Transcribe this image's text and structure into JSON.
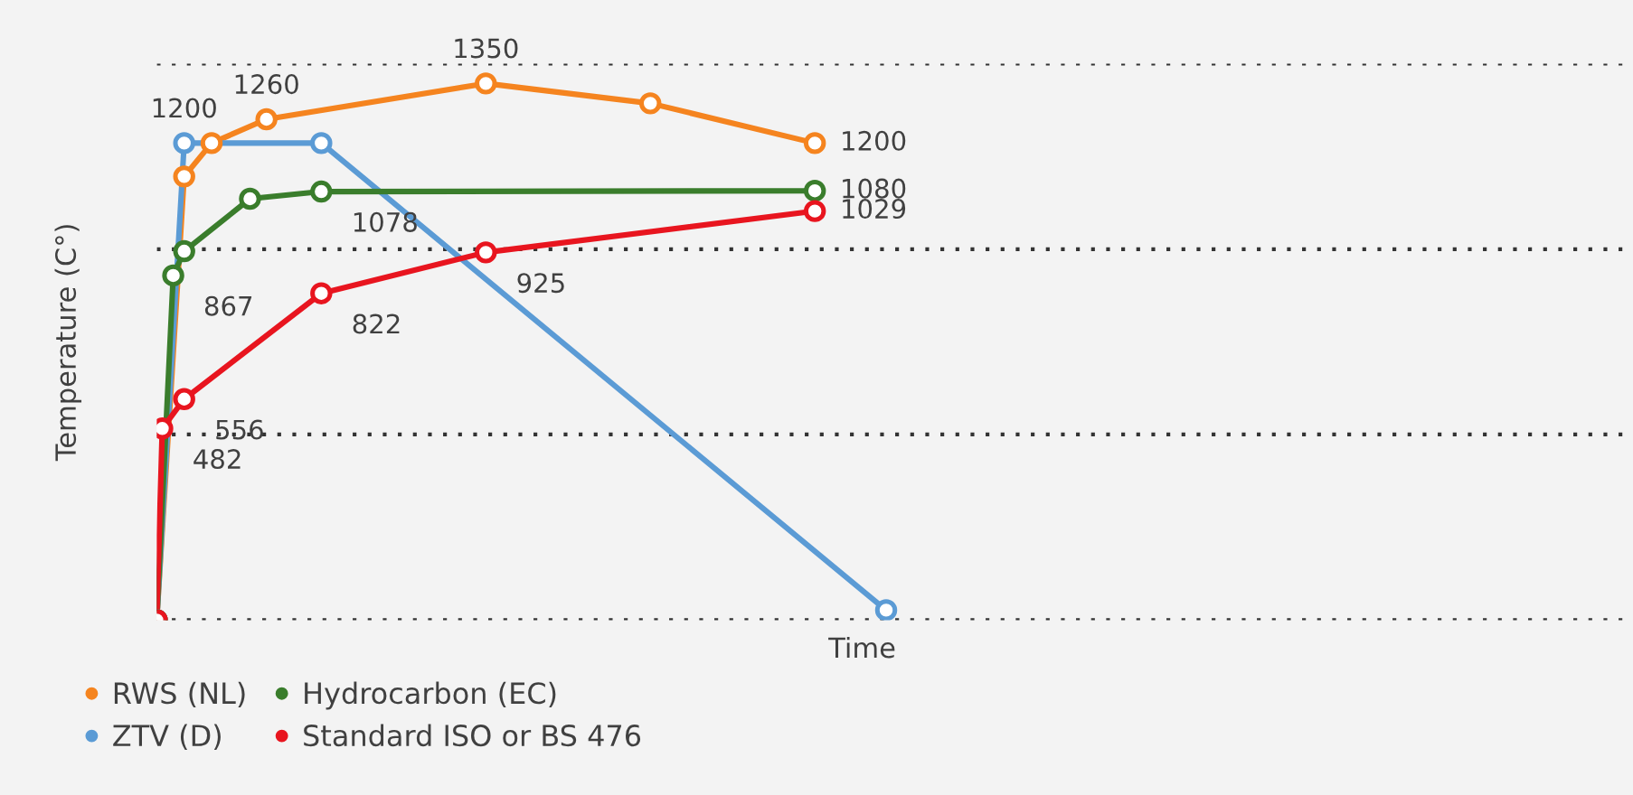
{
  "chart_data": {
    "type": "line",
    "xlabel": "Time",
    "ylabel": "Temperature (C°)",
    "ylim": [
      0,
      1400
    ],
    "yticks": [
      {
        "value": 0,
        "label": null
      },
      {
        "value": 467,
        "label": null
      },
      {
        "value": 933,
        "label": null
      },
      {
        "value": 1400,
        "label": null
      }
    ],
    "tick_labels": false,
    "grid": "y",
    "legend": "bottom left",
    "marker": "circle",
    "line_style": "solid",
    "categories": [
      null,
      null,
      null,
      null,
      null,
      null,
      null,
      null,
      null,
      null,
      null,
      null,
      null,
      null,
      null,
      null,
      null,
      null,
      null,
      null,
      null,
      null,
      null,
      null,
      null,
      null,
      null,
      null,
      null,
      null,
      null,
      null,
      null,
      null,
      null,
      null,
      null,
      null,
      null,
      null,
      null,
      null,
      null,
      null,
      null,
      null,
      null,
      null,
      null,
      null,
      null,
      null,
      null,
      null,
      null,
      null,
      null,
      null,
      null,
      null,
      null,
      null,
      null,
      null,
      null,
      null,
      null,
      null,
      null,
      null,
      null,
      null,
      null,
      null,
      null,
      null,
      null,
      null,
      null,
      null,
      null,
      null,
      null,
      null,
      null,
      null,
      null,
      null,
      null,
      null,
      null,
      null,
      null,
      null,
      null,
      null,
      null,
      null,
      null,
      null,
      null,
      null,
      null,
      null,
      null,
      null,
      null,
      null,
      null,
      null,
      null,
      null,
      null,
      null,
      null,
      null,
      null,
      null,
      null,
      null,
      null,
      null,
      null,
      null,
      null,
      null,
      null,
      null,
      null,
      null,
      null,
      null,
      null,
      null
    ],
    "series": [
      {
        "name": "RWS (NL)",
        "color": "#f5841f",
        "values": [
          0,
          null,
          null,
          null,
          null,
          1116,
          null,
          null,
          null,
          null,
          1200,
          null,
          null,
          null,
          null,
          null,
          null,
          null,
          null,
          null,
          1260,
          null,
          null,
          null,
          null,
          null,
          null,
          null,
          null,
          null,
          null,
          null,
          null,
          null,
          null,
          null,
          null,
          null,
          null,
          null,
          null,
          null,
          null,
          null,
          null,
          null,
          null,
          null,
          null,
          null,
          null,
          null,
          null,
          null,
          null,
          null,
          null,
          null,
          null,
          null,
          1350,
          null,
          null,
          null,
          null,
          null,
          null,
          null,
          null,
          null,
          null,
          null,
          null,
          null,
          null,
          null,
          null,
          null,
          null,
          null,
          null,
          null,
          null,
          null,
          null,
          null,
          null,
          null,
          null,
          null,
          1300,
          null,
          null,
          null,
          null,
          null,
          null,
          null,
          null,
          null,
          null,
          null,
          null,
          null,
          null,
          null,
          null,
          null,
          null,
          null,
          null,
          null,
          null,
          null,
          null,
          null,
          null,
          null,
          null,
          null,
          1200,
          null,
          null,
          null,
          null,
          null,
          null,
          null,
          null,
          null,
          null,
          null,
          null,
          null
        ],
        "value_labels": [
          null,
          null,
          null,
          null,
          null,
          null,
          null,
          null,
          null,
          null,
          null,
          null,
          null,
          null,
          null,
          null,
          null,
          null,
          null,
          null,
          "1260",
          null,
          null,
          null,
          null,
          null,
          null,
          null,
          null,
          null,
          null,
          null,
          null,
          null,
          null,
          null,
          null,
          null,
          null,
          null,
          null,
          null,
          null,
          null,
          null,
          null,
          null,
          null,
          null,
          null,
          null,
          null,
          null,
          null,
          null,
          null,
          null,
          null,
          null,
          null,
          "1350",
          null,
          null,
          null,
          null,
          null,
          null,
          null,
          null,
          null,
          null,
          null,
          null,
          null,
          null,
          null,
          null,
          null,
          null,
          null,
          null,
          null,
          null,
          null,
          null,
          null,
          null,
          null,
          null,
          null,
          null,
          null,
          null,
          null,
          null,
          null,
          null,
          null,
          null,
          null,
          null,
          null,
          null,
          null,
          null,
          null,
          null,
          null,
          null,
          null,
          null,
          null,
          null,
          null,
          null,
          null,
          null,
          null,
          null,
          null,
          "1200",
          null,
          null,
          null,
          null,
          null,
          null,
          null,
          null,
          null,
          null,
          null,
          null,
          null
        ]
      },
      {
        "name": "ZTV (D)",
        "color": "#5b9bd5",
        "values": [
          0,
          null,
          null,
          null,
          null,
          1200,
          null,
          null,
          null,
          null,
          null,
          null,
          null,
          null,
          null,
          null,
          null,
          null,
          null,
          null,
          null,
          null,
          null,
          null,
          null,
          null,
          null,
          null,
          null,
          null,
          1200,
          null,
          null,
          null,
          null,
          null,
          null,
          null,
          null,
          null,
          null,
          null,
          null,
          null,
          null,
          null,
          null,
          null,
          null,
          null,
          null,
          null,
          null,
          null,
          null,
          null,
          null,
          null,
          null,
          null,
          null,
          null,
          null,
          null,
          null,
          null,
          null,
          null,
          null,
          null,
          null,
          null,
          null,
          null,
          null,
          null,
          null,
          null,
          null,
          null,
          null,
          null,
          null,
          null,
          null,
          null,
          null,
          null,
          null,
          null,
          null,
          null,
          null,
          null,
          null,
          null,
          null,
          null,
          null,
          null,
          null,
          null,
          null,
          null,
          null,
          null,
          null,
          null,
          null,
          null,
          null,
          null,
          null,
          null,
          null,
          null,
          null,
          null,
          null,
          null,
          null,
          null,
          null,
          null,
          null,
          null,
          null,
          null,
          null,
          null,
          null,
          null,
          null,
          25
        ],
        "value_labels": [
          null,
          null,
          null,
          null,
          null,
          "1200",
          null,
          null,
          null,
          null,
          null,
          null,
          null,
          null,
          null,
          null,
          null,
          null,
          null,
          null,
          null,
          null,
          null,
          null,
          null,
          null,
          null,
          null,
          null,
          null,
          null,
          null,
          null,
          null,
          null,
          null,
          null,
          null,
          null,
          null,
          null,
          null,
          null,
          null,
          null,
          null,
          null,
          null,
          null,
          null,
          null,
          null,
          null,
          null,
          null,
          null,
          null,
          null,
          null,
          null,
          null,
          null,
          null,
          null,
          null,
          null,
          null,
          null,
          null,
          null,
          null,
          null,
          null,
          null,
          null,
          null,
          null,
          null,
          null,
          null,
          null,
          null,
          null,
          null,
          null,
          null,
          null,
          null,
          null,
          null,
          null,
          null,
          null,
          null,
          null,
          null,
          null,
          null,
          null,
          null,
          null,
          null,
          null,
          null,
          null,
          null,
          null,
          null,
          null,
          null,
          null,
          null,
          null,
          null,
          null,
          null,
          null,
          null,
          null,
          null,
          null,
          null,
          null,
          null,
          null,
          null,
          null,
          null,
          null,
          null,
          null,
          null,
          null,
          null
        ]
      },
      {
        "name": "Hydrocarbon (EC)",
        "color": "#3a7d2c",
        "values": [
          0,
          null,
          null,
          867,
          null,
          928,
          null,
          null,
          null,
          null,
          null,
          null,
          null,
          null,
          null,
          null,
          null,
          1060,
          null,
          null,
          null,
          null,
          null,
          null,
          null,
          null,
          null,
          null,
          null,
          null,
          1078,
          null,
          null,
          null,
          null,
          null,
          null,
          null,
          null,
          null,
          null,
          null,
          null,
          null,
          null,
          null,
          null,
          null,
          null,
          null,
          null,
          null,
          null,
          null,
          null,
          null,
          null,
          null,
          null,
          null,
          null,
          null,
          null,
          null,
          null,
          null,
          null,
          null,
          null,
          null,
          null,
          null,
          null,
          null,
          null,
          null,
          null,
          null,
          null,
          null,
          null,
          null,
          null,
          null,
          null,
          null,
          null,
          null,
          null,
          null,
          null,
          null,
          null,
          null,
          null,
          null,
          null,
          null,
          null,
          null,
          null,
          null,
          null,
          null,
          null,
          null,
          null,
          null,
          null,
          null,
          null,
          null,
          null,
          null,
          null,
          null,
          null,
          null,
          null,
          null,
          1080,
          null,
          null,
          null,
          null,
          null,
          null,
          null,
          null,
          null,
          null,
          null,
          null,
          null
        ],
        "value_labels": [
          null,
          null,
          null,
          "867",
          null,
          null,
          null,
          null,
          null,
          null,
          null,
          null,
          null,
          null,
          null,
          null,
          null,
          null,
          null,
          null,
          null,
          null,
          null,
          null,
          null,
          null,
          null,
          null,
          null,
          null,
          "1078",
          null,
          null,
          null,
          null,
          null,
          null,
          null,
          null,
          null,
          null,
          null,
          null,
          null,
          null,
          null,
          null,
          null,
          null,
          null,
          null,
          null,
          null,
          null,
          null,
          null,
          null,
          null,
          null,
          null,
          null,
          null,
          null,
          null,
          null,
          null,
          null,
          null,
          null,
          null,
          null,
          null,
          null,
          null,
          null,
          null,
          null,
          null,
          null,
          null,
          null,
          null,
          null,
          null,
          null,
          null,
          null,
          null,
          null,
          null,
          null,
          null,
          null,
          null,
          null,
          null,
          null,
          null,
          null,
          null,
          null,
          null,
          null,
          null,
          null,
          null,
          null,
          null,
          null,
          null,
          null,
          null,
          null,
          null,
          null,
          null,
          null,
          null,
          null,
          null,
          "1080",
          null,
          null,
          null,
          null,
          null,
          null,
          null,
          null,
          null,
          null,
          null,
          null,
          null
        ]
      },
      {
        "name": "Standard ISO or BS 476",
        "color": "#e8151f",
        "values": [
          0,
          482,
          null,
          null,
          null,
          556,
          null,
          null,
          null,
          null,
          null,
          null,
          null,
          null,
          null,
          null,
          null,
          null,
          null,
          null,
          null,
          null,
          null,
          null,
          null,
          null,
          null,
          null,
          null,
          null,
          822,
          null,
          null,
          null,
          null,
          null,
          null,
          null,
          null,
          null,
          null,
          null,
          null,
          null,
          null,
          null,
          null,
          null,
          null,
          null,
          null,
          null,
          null,
          null,
          null,
          null,
          null,
          null,
          null,
          null,
          925,
          null,
          null,
          null,
          null,
          null,
          null,
          null,
          null,
          null,
          null,
          null,
          null,
          null,
          null,
          null,
          null,
          null,
          null,
          null,
          null,
          null,
          null,
          null,
          null,
          null,
          null,
          null,
          null,
          null,
          null,
          null,
          null,
          null,
          null,
          null,
          null,
          null,
          null,
          null,
          null,
          null,
          null,
          null,
          null,
          null,
          null,
          null,
          null,
          null,
          null,
          null,
          null,
          null,
          null,
          null,
          null,
          null,
          null,
          null,
          1029,
          null,
          null,
          null,
          null,
          null,
          null,
          null,
          null,
          null,
          null,
          null,
          null,
          null
        ],
        "value_labels": [
          null,
          "482",
          null,
          null,
          null,
          "556",
          null,
          null,
          null,
          null,
          null,
          null,
          null,
          null,
          null,
          null,
          null,
          null,
          null,
          null,
          null,
          null,
          null,
          null,
          null,
          null,
          null,
          null,
          null,
          null,
          "822",
          null,
          null,
          null,
          null,
          null,
          null,
          null,
          null,
          null,
          null,
          null,
          null,
          null,
          null,
          null,
          null,
          null,
          null,
          null,
          null,
          null,
          null,
          null,
          null,
          null,
          null,
          null,
          null,
          null,
          "925",
          null,
          null,
          null,
          null,
          null,
          null,
          null,
          null,
          null,
          null,
          null,
          null,
          null,
          null,
          null,
          null,
          null,
          null,
          null,
          null,
          null,
          null,
          null,
          null,
          null,
          null,
          null,
          null,
          null,
          null,
          null,
          null,
          null,
          null,
          null,
          null,
          null,
          null,
          null,
          null,
          null,
          null,
          null,
          null,
          null,
          null,
          null,
          null,
          null,
          null,
          null,
          null,
          null,
          null,
          null,
          null,
          null,
          null,
          null,
          "1029",
          null,
          null,
          null,
          null,
          null,
          null,
          null,
          null,
          null,
          null,
          null,
          null,
          null
        ]
      }
    ]
  }
}
